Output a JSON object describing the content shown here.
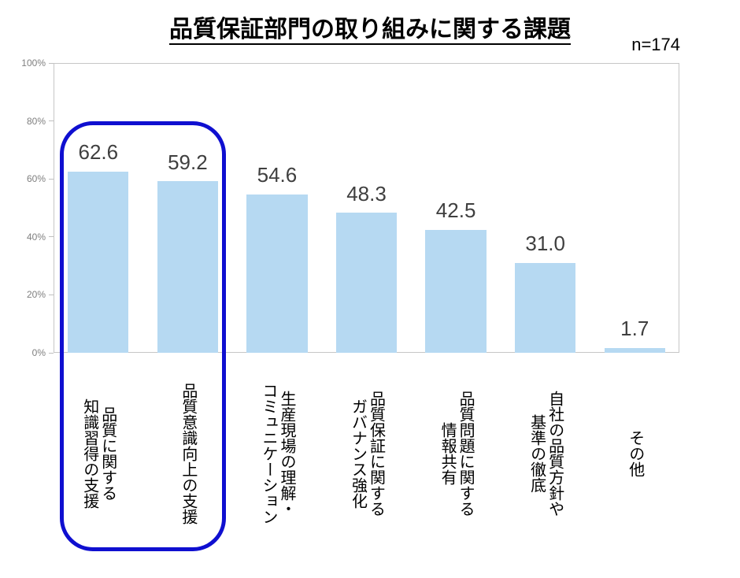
{
  "title": "品質保証部門の取り組みに関する課題",
  "sample_size_label": "n=174",
  "chart_data": {
    "type": "bar",
    "title": "品質保証部門の取り組みに関する課題",
    "sample_size_label": "n=174",
    "categories": [
      "品質に関する\n知識習得の支援",
      "品質意識向上の支援",
      "生産現場の理解・\nコミュニケーション",
      "品質保証に関する\nガバナンス強化",
      "品質問題に関する\n情報共有",
      "自社の品質方針や\n基準の徹底",
      "その他"
    ],
    "values": [
      62.6,
      59.2,
      54.6,
      48.3,
      42.5,
      31.0,
      1.7
    ],
    "value_labels": [
      "62.6",
      "59.2",
      "54.6",
      "48.3",
      "42.5",
      "31.0",
      "1.7"
    ],
    "unit": "%",
    "ylim": [
      0,
      100
    ],
    "ytick_labels": [
      "0%",
      "20%",
      "40%",
      "60%",
      "80%",
      "100%"
    ],
    "ytick_values": [
      0,
      20,
      40,
      60,
      80,
      100
    ],
    "grid": false,
    "legend": false,
    "bar_color": "#b6d9f2",
    "axis_color": "#c6c6c6",
    "highlight": {
      "highlighted_categories": [
        "品質に関する知識習得の支援",
        "品質意識向上の支援"
      ],
      "color": "#0f0fd0"
    }
  }
}
